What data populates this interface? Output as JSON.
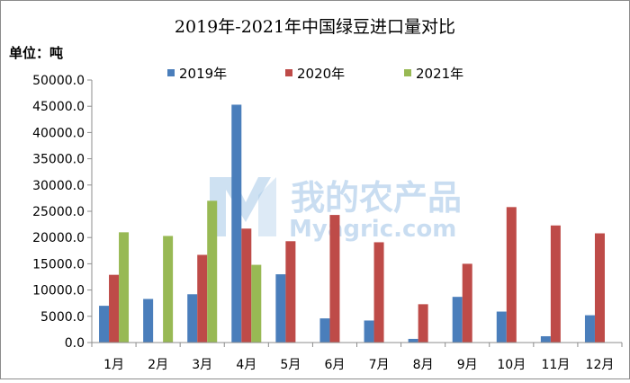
{
  "chart_data": {
    "type": "bar",
    "title": "2019年-2021年中国绿豆进口量对比",
    "ylabel": "单位：吨",
    "categories": [
      "1月",
      "2月",
      "3月",
      "4月",
      "5月",
      "6月",
      "7月",
      "8月",
      "9月",
      "10月",
      "11月",
      "12月"
    ],
    "ylim": [
      0,
      50000
    ],
    "yticks": [
      "0.0",
      "5000.0",
      "10000.0",
      "15000.0",
      "20000.0",
      "25000.0",
      "30000.0",
      "35000.0",
      "40000.0",
      "45000.0",
      "50000.0"
    ],
    "ytick_values": [
      0,
      5000,
      10000,
      15000,
      20000,
      25000,
      30000,
      35000,
      40000,
      45000,
      50000
    ],
    "grid": false,
    "legend": "top-center",
    "series": [
      {
        "name": "2019年",
        "color": "#4a7ebb",
        "values": [
          7000,
          8300,
          9200,
          45300,
          13000,
          4600,
          4200,
          700,
          8700,
          5900,
          1200,
          5200
        ]
      },
      {
        "name": "2020年",
        "color": "#be4b48",
        "values": [
          12900,
          null,
          16700,
          21700,
          19300,
          24300,
          19100,
          7300,
          15000,
          25800,
          22300,
          20800
        ]
      },
      {
        "name": "2021年",
        "color": "#98b954",
        "values": [
          21000,
          20300,
          27000,
          14800,
          null,
          null,
          null,
          null,
          null,
          null,
          null,
          null
        ]
      }
    ]
  },
  "watermark": {
    "cn": "我的农产品",
    "en_prefix": "Myagric",
    "en_suffix": ".com",
    "color": "#9ec3e6"
  }
}
